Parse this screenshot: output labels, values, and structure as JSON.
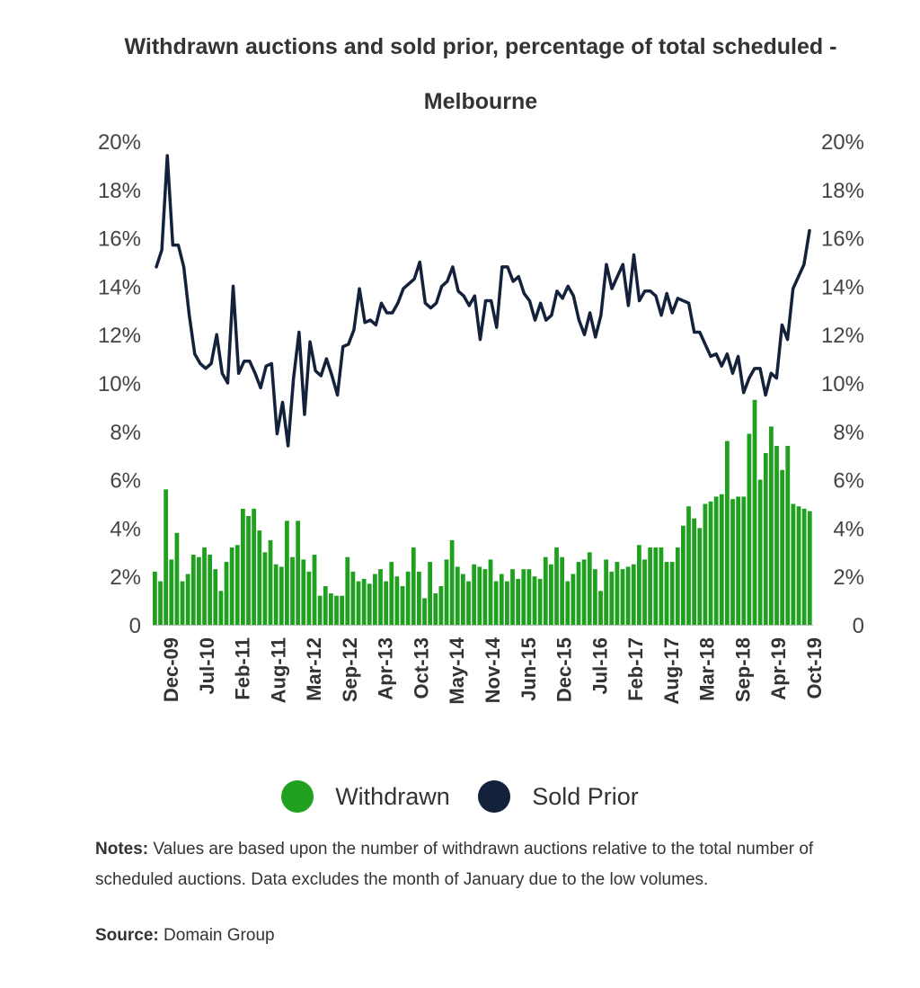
{
  "chart_data": {
    "type": "bar+line",
    "title": "Withdrawn auctions and sold prior, percentage of total scheduled -  Melbourne",
    "y_ticks": [
      "0",
      "2%",
      "4%",
      "6%",
      "8%",
      "10%",
      "12%",
      "14%",
      "16%",
      "18%",
      "20%"
    ],
    "ylim": [
      0,
      20
    ],
    "x_tick_labels": [
      "Dec-09",
      "Jul-10",
      "Feb-11",
      "Aug-11",
      "Mar-12",
      "Sep-12",
      "Apr-13",
      "Oct-13",
      "May-14",
      "Nov-14",
      "Jun-15",
      "Dec-15",
      "Jul-16",
      "Feb-17",
      "Aug-17",
      "Mar-18",
      "Sep-18",
      "Apr-19",
      "Oct-19"
    ],
    "colors": {
      "withdrawn": "#1fa01f",
      "sold_prior": "#13213a"
    },
    "series": [
      {
        "name": "Withdrawn",
        "type": "bar",
        "values": [
          2.2,
          1.8,
          5.6,
          2.7,
          3.8,
          1.8,
          2.1,
          2.9,
          2.8,
          3.2,
          2.9,
          2.3,
          1.4,
          2.6,
          3.2,
          3.3,
          4.8,
          4.5,
          4.8,
          3.9,
          3.0,
          3.5,
          2.5,
          2.4,
          4.3,
          2.8,
          4.3,
          2.7,
          2.2,
          2.9,
          1.2,
          1.6,
          1.3,
          1.2,
          1.2,
          2.8,
          2.2,
          1.8,
          1.9,
          1.7,
          2.1,
          2.3,
          1.8,
          2.6,
          2.0,
          1.6,
          2.2,
          3.2,
          2.2,
          1.1,
          2.6,
          1.3,
          1.6,
          2.7,
          3.5,
          2.4,
          2.1,
          1.8,
          2.5,
          2.4,
          2.3,
          2.7,
          1.8,
          2.1,
          1.8,
          2.3,
          1.9,
          2.3,
          2.3,
          2.0,
          1.9,
          2.8,
          2.5,
          3.2,
          2.8,
          1.8,
          2.1,
          2.6,
          2.7,
          3.0,
          2.3,
          1.4,
          2.7,
          2.2,
          2.6,
          2.3,
          2.4,
          2.5,
          3.3,
          2.7,
          3.2,
          3.2,
          3.2,
          2.6,
          2.6,
          3.2,
          4.1,
          4.9,
          4.4,
          4.0,
          5.0,
          5.1,
          5.3,
          5.4,
          7.6,
          5.2,
          5.3,
          5.3,
          7.9,
          9.3,
          6.0,
          7.1,
          8.2,
          7.4,
          6.4,
          7.4,
          5.0,
          4.9,
          4.8,
          4.7
        ]
      },
      {
        "name": "Sold Prior",
        "type": "line",
        "values": [
          14.8,
          15.5,
          19.4,
          15.7,
          15.7,
          14.8,
          12.8,
          11.2,
          10.8,
          10.6,
          10.8,
          12.0,
          10.4,
          10.0,
          14.0,
          10.4,
          10.9,
          10.9,
          10.4,
          9.8,
          10.7,
          10.8,
          7.9,
          9.2,
          7.4,
          10.2,
          12.1,
          8.7,
          11.7,
          10.5,
          10.3,
          11.0,
          10.3,
          9.5,
          11.5,
          11.6,
          12.2,
          13.9,
          12.5,
          12.6,
          12.4,
          13.3,
          12.9,
          12.9,
          13.3,
          13.9,
          14.1,
          14.3,
          15.0,
          13.3,
          13.1,
          13.3,
          14.0,
          14.2,
          14.8,
          13.8,
          13.6,
          13.2,
          13.6,
          11.8,
          13.4,
          13.4,
          12.3,
          14.8,
          14.8,
          14.2,
          14.4,
          13.7,
          13.4,
          12.6,
          13.3,
          12.6,
          12.8,
          13.8,
          13.5,
          14.0,
          13.6,
          12.6,
          12.0,
          12.9,
          11.9,
          12.8,
          14.9,
          13.9,
          14.4,
          14.9,
          13.2,
          15.3,
          13.4,
          13.8,
          13.8,
          13.6,
          12.8,
          13.7,
          12.9,
          13.5,
          13.4,
          13.3,
          12.1,
          12.1,
          11.6,
          11.1,
          11.2,
          10.7,
          11.2,
          10.4,
          11.1,
          9.6,
          10.2,
          10.6,
          10.6,
          9.5,
          10.4,
          10.2,
          12.4,
          11.8,
          13.9,
          14.4,
          14.9,
          16.3
        ]
      }
    ],
    "legend": {
      "position": "bottom"
    }
  },
  "legend_items": [
    {
      "label": "Withdrawn"
    },
    {
      "label": "Sold Prior"
    }
  ],
  "notes": {
    "label": "Notes:",
    "text": " Values are based upon the number of withdrawn auctions relative to the total number of scheduled auctions. Data excludes the month of January due to the low volumes."
  },
  "source": {
    "label": "Source:",
    "text": " Domain Group"
  }
}
